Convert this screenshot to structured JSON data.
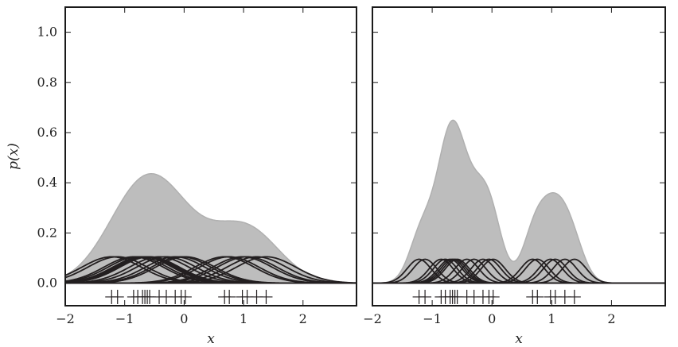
{
  "chart_data": [
    {
      "type": "area",
      "panel": "left",
      "description_bandwidth": "wide",
      "bandwidth": 0.5,
      "xlabel": "x",
      "ylabel": "p(x)",
      "xlim": [
        -2,
        2.9
      ],
      "ylim": [
        -0.09,
        1.1
      ],
      "xticks": [
        -2,
        -1,
        0,
        1,
        2
      ],
      "xtick_labels": [
        "−2",
        "−1",
        "0",
        "1",
        "2"
      ],
      "yticks": [
        0.0,
        0.2,
        0.4,
        0.6,
        0.8,
        1.0
      ],
      "ytick_labels": [
        "0.0",
        "0.2",
        "0.4",
        "0.6",
        "0.8",
        "1.0"
      ],
      "samples": [
        -1.22,
        -1.12,
        -0.85,
        -0.78,
        -0.7,
        -0.66,
        -0.62,
        -0.58,
        -0.42,
        -0.3,
        -0.15,
        -0.05,
        0.02,
        0.68,
        0.76,
        0.98,
        1.06,
        1.22,
        1.38
      ],
      "kernel_peak": 0.105
    },
    {
      "type": "area",
      "panel": "right",
      "description_bandwidth": "narrow",
      "bandwidth": 0.2,
      "xlabel": "x",
      "ylabel": "",
      "xlim": [
        -2,
        2.9
      ],
      "ylim": [
        -0.09,
        1.1
      ],
      "xticks": [
        -2,
        -1,
        0,
        1,
        2
      ],
      "xtick_labels": [
        "−2",
        "−1",
        "0",
        "1",
        "2"
      ],
      "yticks": [
        0.0,
        0.2,
        0.4,
        0.6,
        0.8,
        1.0
      ],
      "ytick_labels": [],
      "samples": [
        -1.22,
        -1.12,
        -0.85,
        -0.78,
        -0.7,
        -0.66,
        -0.62,
        -0.58,
        -0.42,
        -0.3,
        -0.15,
        -0.05,
        0.02,
        0.68,
        0.76,
        0.98,
        1.06,
        1.22,
        1.38
      ],
      "kernel_peak": 0.095
    }
  ]
}
